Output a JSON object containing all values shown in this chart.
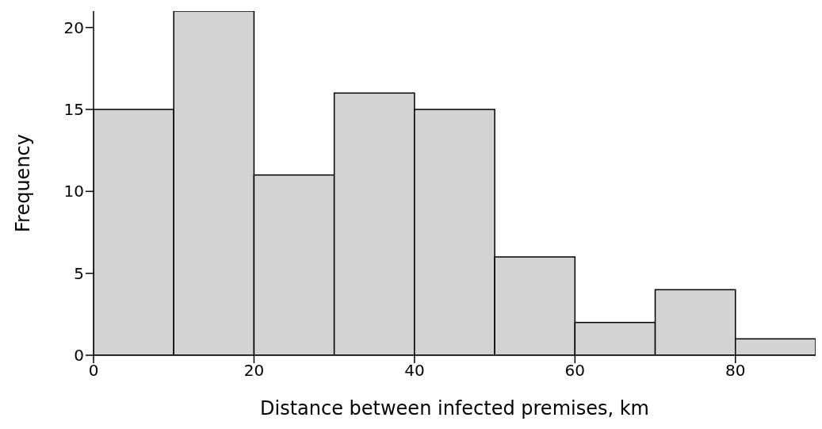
{
  "chart_data": {
    "type": "histogram",
    "xlabel": "Distance between infected premises, km",
    "ylabel": "Frequency",
    "bins": [
      0,
      10,
      20,
      30,
      40,
      50,
      60,
      70,
      80,
      90
    ],
    "values": [
      15,
      21,
      11,
      16,
      15,
      6,
      2,
      4,
      1
    ],
    "color": "#d3d3d3",
    "xlim": [
      0,
      90
    ],
    "xticks": [
      0,
      20,
      40,
      60,
      80
    ],
    "ylim": [
      0,
      21
    ],
    "yticks": [
      0,
      5,
      10,
      15,
      20
    ],
    "grid": false,
    "legend": false
  }
}
